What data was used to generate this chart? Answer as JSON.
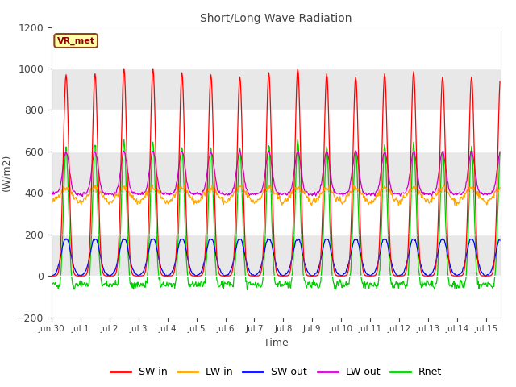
{
  "title": "Short/Long Wave Radiation",
  "xlabel": "Time",
  "ylabel": "(W/m2)",
  "ylim": [
    -200,
    1200
  ],
  "n_days": 15.5,
  "annotation": "VR_met",
  "fig_bg": "#ffffff",
  "plot_bg": "#e8e8e8",
  "stripe_color": "#f4f4f4",
  "grid_color": "#ffffff",
  "colors": {
    "SW_in": "#ff0000",
    "LW_in": "#ffa500",
    "SW_out": "#0000ff",
    "LW_out": "#cc00cc",
    "Rnet": "#00cc00"
  },
  "yticks": [
    -200,
    0,
    200,
    400,
    600,
    800,
    1000,
    1200
  ],
  "xtick_labels": [
    "Jun 30",
    "Jul 1",
    "Jul 2",
    "Jul 3",
    "Jul 4",
    "Jul 5",
    "Jul 6",
    "Jul 7",
    "Jul 8",
    "Jul 9",
    "Jul 10",
    "Jul 11",
    "Jul 12",
    "Jul 13",
    "Jul 14",
    "Jul 15"
  ],
  "legend_labels": [
    "SW in",
    "LW in",
    "SW out",
    "LW out",
    "Rnet"
  ]
}
